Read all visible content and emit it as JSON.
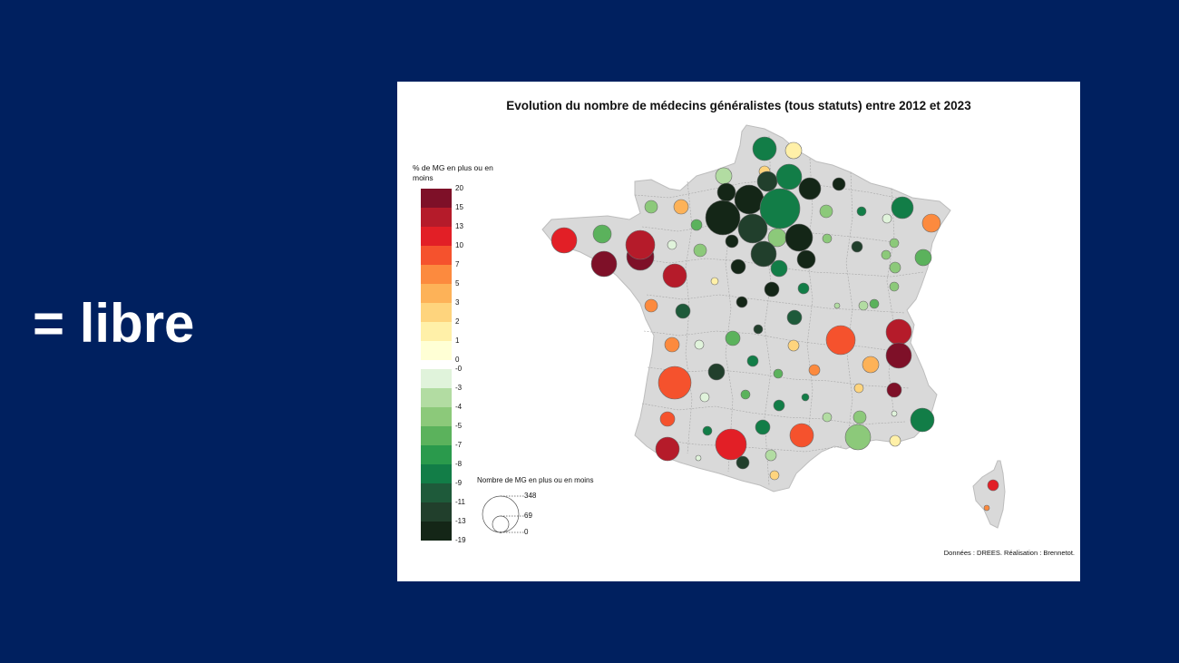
{
  "slide": {
    "label": "= libre"
  },
  "map": {
    "title": "Evolution du nombre de médecins généralistes (tous statuts) entre 2012 et 2023",
    "legend": {
      "title": "% de MG en plus ou en moins",
      "bins": [
        {
          "label": "20",
          "color": "#7e1028"
        },
        {
          "label": "15",
          "color": "#b51b2a"
        },
        {
          "label": "13",
          "color": "#e21f26"
        },
        {
          "label": "10",
          "color": "#f5522d"
        },
        {
          "label": "7",
          "color": "#fc8a3e"
        },
        {
          "label": "5",
          "color": "#fdb258"
        },
        {
          "label": "3",
          "color": "#fed47d"
        },
        {
          "label": "2",
          "color": "#fff0a8"
        },
        {
          "label": "1",
          "color": "#ffffd5"
        },
        {
          "label": "0",
          "color": "#ffffff"
        },
        {
          "label": "-0",
          "color": "#e0f3db"
        },
        {
          "label": "-3",
          "color": "#b2dca2"
        },
        {
          "label": "-4",
          "color": "#8cc97a"
        },
        {
          "label": "-5",
          "color": "#5bb25c"
        },
        {
          "label": "-7",
          "color": "#2a9a4c"
        },
        {
          "label": "-8",
          "color": "#127d47"
        },
        {
          "label": "-9",
          "color": "#1e5a3a"
        },
        {
          "label": "-11",
          "color": "#213f2c"
        },
        {
          "label": "-13",
          "color": "#142617"
        }
      ],
      "bottom_label": "-19"
    },
    "size_legend": {
      "title": "Nombre de MG en plus ou en moins",
      "values": [
        "348",
        "69",
        "0"
      ]
    },
    "source": "Données :  DREES. Réalisation : Brennetot.",
    "colors": {
      "land": "#d9d9d9",
      "border": "#a6a6a6"
    }
  }
}
